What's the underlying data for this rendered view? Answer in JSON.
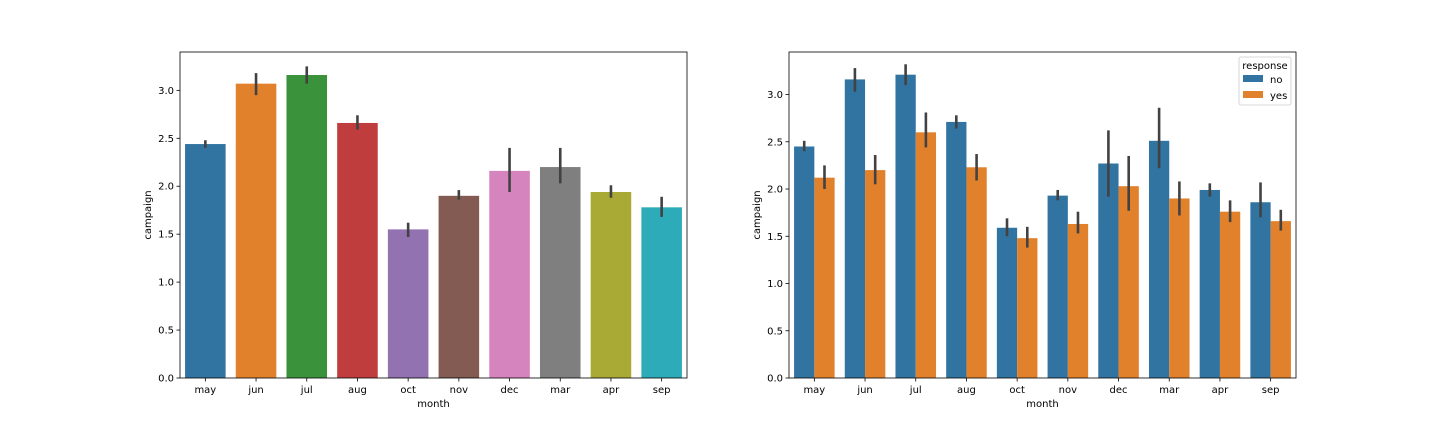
{
  "chart_data": [
    {
      "type": "bar",
      "xlabel": "month",
      "ylabel": "campaign",
      "ylim": [
        0,
        3.4
      ],
      "yticks": [
        "0.0",
        "0.5",
        "1.0",
        "1.5",
        "2.0",
        "2.5",
        "3.0"
      ],
      "grid": false,
      "categories": [
        "may",
        "jun",
        "jul",
        "aug",
        "oct",
        "nov",
        "dec",
        "mar",
        "apr",
        "sep"
      ],
      "values": [
        2.44,
        3.07,
        3.16,
        2.66,
        1.55,
        1.9,
        2.16,
        2.2,
        1.94,
        1.78
      ],
      "error_low": [
        2.4,
        2.95,
        3.07,
        2.59,
        1.47,
        1.86,
        1.94,
        2.03,
        1.88,
        1.68
      ],
      "error_high": [
        2.48,
        3.18,
        3.25,
        2.74,
        1.62,
        1.96,
        2.4,
        2.4,
        2.01,
        1.89
      ],
      "colors": [
        "#3274a1",
        "#e1812c",
        "#3a923a",
        "#c03d3e",
        "#9372b2",
        "#845b53",
        "#d684bd",
        "#7f7f7f",
        "#a9aa35",
        "#2eabb8"
      ]
    },
    {
      "type": "bar",
      "xlabel": "month",
      "ylabel": "campaign",
      "ylim": [
        0,
        3.45
      ],
      "yticks": [
        "0.0",
        "0.5",
        "1.0",
        "1.5",
        "2.0",
        "2.5",
        "3.0"
      ],
      "grid": false,
      "categories": [
        "may",
        "jun",
        "jul",
        "aug",
        "oct",
        "nov",
        "dec",
        "mar",
        "apr",
        "sep"
      ],
      "legend": {
        "title": "response",
        "position": "top-right"
      },
      "series": [
        {
          "name": "no",
          "color": "#3274a1",
          "values": [
            2.45,
            3.16,
            3.21,
            2.71,
            1.59,
            1.93,
            2.27,
            2.51,
            1.99,
            1.86
          ],
          "error_low": [
            2.4,
            3.03,
            3.1,
            2.64,
            1.5,
            1.88,
            1.92,
            2.22,
            1.92,
            1.7
          ],
          "error_high": [
            2.51,
            3.28,
            3.32,
            2.78,
            1.69,
            1.99,
            2.62,
            2.86,
            2.06,
            2.07
          ]
        },
        {
          "name": "yes",
          "color": "#e1812c",
          "values": [
            2.12,
            2.2,
            2.6,
            2.23,
            1.48,
            1.63,
            2.03,
            1.9,
            1.76,
            1.66
          ],
          "error_low": [
            2.0,
            2.05,
            2.44,
            2.09,
            1.38,
            1.53,
            1.77,
            1.72,
            1.65,
            1.56
          ],
          "error_high": [
            2.25,
            2.36,
            2.81,
            2.37,
            1.6,
            1.76,
            2.35,
            2.08,
            1.88,
            1.78
          ]
        }
      ]
    }
  ]
}
